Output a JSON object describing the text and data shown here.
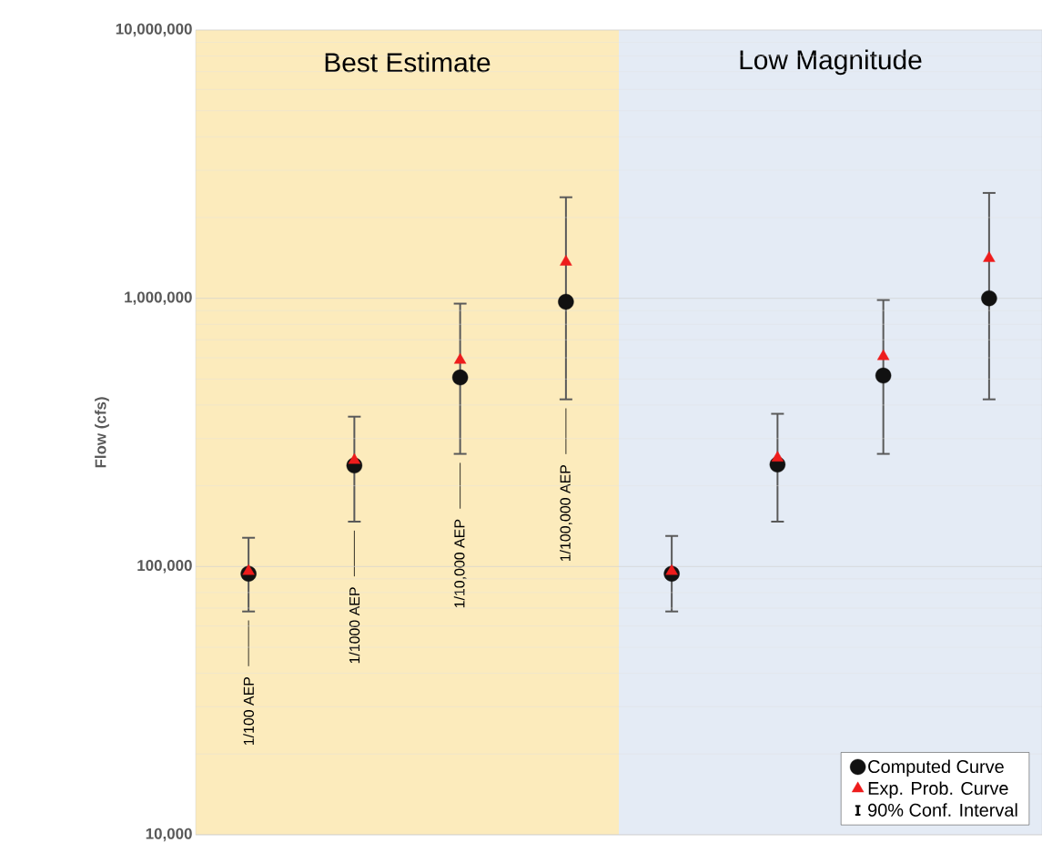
{
  "chart_data": {
    "type": "scatter",
    "ylabel": "Flow (cfs)",
    "log": "y",
    "grid": "y",
    "legend": "bottom right",
    "tick_labels": "y",
    "categories": [
      null,
      null,
      null,
      null,
      null,
      null,
      null,
      null
    ],
    "ylim": [
      10000,
      10000000
    ],
    "yticks": [
      {
        "value": 10000,
        "label": "10,000"
      },
      {
        "value": 100000,
        "label": "100,000"
      },
      {
        "value": 1000000,
        "label": "1,000,000"
      },
      {
        "value": 10000000,
        "label": "10,000,000"
      }
    ],
    "series": [
      {
        "name": "Computed Curve",
        "color": "#111111",
        "marker": "circle",
        "values": [
          94000,
          238000,
          507000,
          970000,
          94000,
          240000,
          515000,
          1000000
        ],
        "errors": [
          [
            68000,
            128000
          ],
          [
            147000,
            362000
          ],
          [
            263000,
            955000
          ],
          [
            420000,
            2380000
          ],
          [
            68000,
            130000
          ],
          [
            147000,
            371000
          ],
          [
            263000,
            985000
          ],
          [
            420000,
            2470000
          ]
        ]
      },
      {
        "name": "Exp. Prob. Curve",
        "color": "#ee1c1c",
        "marker": "triangle",
        "values": [
          96000,
          249000,
          588000,
          1366000,
          96000,
          254000,
          607000,
          1410000
        ]
      }
    ],
    "annotations": [
      "Best Estimate",
      "Low Magnitude",
      "1/100 AEP",
      "1/1000 AEP",
      "1/10,000 AEP",
      "1/100,000 AEP",
      "90% Conf. Interval"
    ]
  }
}
